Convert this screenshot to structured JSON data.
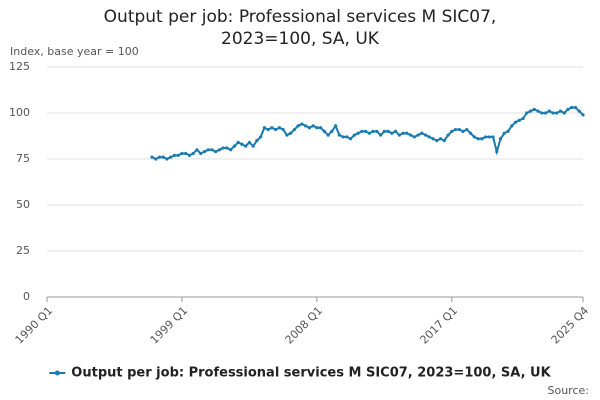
{
  "chart_data": {
    "type": "line",
    "title": "Output per job: Professional services M SIC07, 2023=100, SA, UK",
    "y_label": "Index, base year = 100",
    "source": "Source:",
    "categories": [
      "1990 Q1",
      null,
      null,
      null,
      null,
      null,
      null,
      null,
      null,
      null,
      null,
      null,
      null,
      null,
      null,
      null,
      null,
      null,
      null,
      null,
      null,
      null,
      null,
      null,
      null,
      null,
      null,
      null,
      null,
      null,
      null,
      null,
      null,
      null,
      null,
      null,
      "1999 Q1",
      null,
      null,
      null,
      null,
      null,
      null,
      null,
      null,
      null,
      null,
      null,
      null,
      null,
      null,
      null,
      null,
      null,
      null,
      null,
      null,
      null,
      null,
      null,
      null,
      null,
      null,
      null,
      null,
      null,
      null,
      null,
      null,
      null,
      null,
      null,
      "2008 Q1",
      null,
      null,
      null,
      null,
      null,
      null,
      null,
      null,
      null,
      null,
      null,
      null,
      null,
      null,
      null,
      null,
      null,
      null,
      null,
      null,
      null,
      null,
      null,
      null,
      null,
      null,
      null,
      null,
      null,
      null,
      null,
      null,
      null,
      null,
      null,
      "2017 Q1",
      null,
      null,
      null,
      null,
      null,
      null,
      null,
      null,
      null,
      null,
      null,
      null,
      null,
      null,
      null,
      null,
      null,
      null,
      null,
      null,
      null,
      null,
      null,
      null,
      null,
      null,
      null,
      null,
      null,
      null,
      null,
      null,
      null,
      null,
      "2025 Q4"
    ],
    "series": [
      {
        "name": "Output per job: Professional services M SIC07, 2023=100, SA, UK",
        "color": "#1a7bb0",
        "values": [
          null,
          null,
          null,
          null,
          null,
          null,
          null,
          null,
          null,
          null,
          null,
          null,
          null,
          null,
          null,
          null,
          null,
          null,
          null,
          null,
          null,
          null,
          null,
          null,
          null,
          null,
          null,
          null,
          76,
          75,
          76,
          76,
          75,
          76,
          77,
          77,
          78,
          78,
          77,
          78,
          80,
          78,
          79,
          80,
          80,
          79,
          80,
          81,
          81,
          80,
          82,
          84,
          83,
          82,
          84,
          82,
          85,
          87,
          92,
          91,
          92,
          91,
          92,
          91,
          88,
          89,
          91,
          93,
          94,
          93,
          92,
          93,
          92,
          92,
          90,
          88,
          90,
          93,
          88,
          87,
          87,
          86,
          88,
          89,
          90,
          90,
          89,
          90,
          90,
          88,
          90,
          90,
          89,
          90,
          88,
          89,
          89,
          88,
          87,
          88,
          89,
          88,
          87,
          86,
          85,
          86,
          85,
          88,
          90,
          91,
          91,
          90,
          91,
          89,
          87,
          86,
          86,
          87,
          87,
          87,
          79,
          86,
          89,
          90,
          93,
          95,
          96,
          97,
          100,
          101,
          102,
          101,
          100,
          100,
          101,
          100,
          100,
          101,
          100,
          102,
          103,
          103,
          101,
          99
        ]
      }
    ],
    "ylim": [
      0,
      125
    ],
    "yticks": [
      0,
      25,
      50,
      75,
      100,
      125
    ],
    "grid": true,
    "legend": "bottom"
  }
}
